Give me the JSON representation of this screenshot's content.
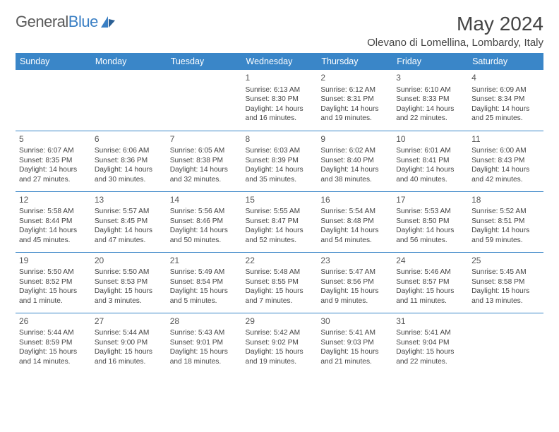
{
  "logo": {
    "text1": "General",
    "text2": "Blue"
  },
  "title": "May 2024",
  "location": "Olevano di Lomellina, Lombardy, Italy",
  "colors": {
    "header_bg": "#3a86c8",
    "header_fg": "#ffffff",
    "row_divider": "#3a86c8",
    "body_text": "#444444",
    "logo_gray": "#5a5a5a",
    "logo_blue": "#3a7fc4",
    "page_bg": "#ffffff"
  },
  "day_headers": [
    "Sunday",
    "Monday",
    "Tuesday",
    "Wednesday",
    "Thursday",
    "Friday",
    "Saturday"
  ],
  "weeks": [
    [
      {
        "n": "",
        "lines": []
      },
      {
        "n": "",
        "lines": []
      },
      {
        "n": "",
        "lines": []
      },
      {
        "n": "1",
        "lines": [
          "Sunrise: 6:13 AM",
          "Sunset: 8:30 PM",
          "Daylight: 14 hours",
          "and 16 minutes."
        ]
      },
      {
        "n": "2",
        "lines": [
          "Sunrise: 6:12 AM",
          "Sunset: 8:31 PM",
          "Daylight: 14 hours",
          "and 19 minutes."
        ]
      },
      {
        "n": "3",
        "lines": [
          "Sunrise: 6:10 AM",
          "Sunset: 8:33 PM",
          "Daylight: 14 hours",
          "and 22 minutes."
        ]
      },
      {
        "n": "4",
        "lines": [
          "Sunrise: 6:09 AM",
          "Sunset: 8:34 PM",
          "Daylight: 14 hours",
          "and 25 minutes."
        ]
      }
    ],
    [
      {
        "n": "5",
        "lines": [
          "Sunrise: 6:07 AM",
          "Sunset: 8:35 PM",
          "Daylight: 14 hours",
          "and 27 minutes."
        ]
      },
      {
        "n": "6",
        "lines": [
          "Sunrise: 6:06 AM",
          "Sunset: 8:36 PM",
          "Daylight: 14 hours",
          "and 30 minutes."
        ]
      },
      {
        "n": "7",
        "lines": [
          "Sunrise: 6:05 AM",
          "Sunset: 8:38 PM",
          "Daylight: 14 hours",
          "and 32 minutes."
        ]
      },
      {
        "n": "8",
        "lines": [
          "Sunrise: 6:03 AM",
          "Sunset: 8:39 PM",
          "Daylight: 14 hours",
          "and 35 minutes."
        ]
      },
      {
        "n": "9",
        "lines": [
          "Sunrise: 6:02 AM",
          "Sunset: 8:40 PM",
          "Daylight: 14 hours",
          "and 38 minutes."
        ]
      },
      {
        "n": "10",
        "lines": [
          "Sunrise: 6:01 AM",
          "Sunset: 8:41 PM",
          "Daylight: 14 hours",
          "and 40 minutes."
        ]
      },
      {
        "n": "11",
        "lines": [
          "Sunrise: 6:00 AM",
          "Sunset: 8:43 PM",
          "Daylight: 14 hours",
          "and 42 minutes."
        ]
      }
    ],
    [
      {
        "n": "12",
        "lines": [
          "Sunrise: 5:58 AM",
          "Sunset: 8:44 PM",
          "Daylight: 14 hours",
          "and 45 minutes."
        ]
      },
      {
        "n": "13",
        "lines": [
          "Sunrise: 5:57 AM",
          "Sunset: 8:45 PM",
          "Daylight: 14 hours",
          "and 47 minutes."
        ]
      },
      {
        "n": "14",
        "lines": [
          "Sunrise: 5:56 AM",
          "Sunset: 8:46 PM",
          "Daylight: 14 hours",
          "and 50 minutes."
        ]
      },
      {
        "n": "15",
        "lines": [
          "Sunrise: 5:55 AM",
          "Sunset: 8:47 PM",
          "Daylight: 14 hours",
          "and 52 minutes."
        ]
      },
      {
        "n": "16",
        "lines": [
          "Sunrise: 5:54 AM",
          "Sunset: 8:48 PM",
          "Daylight: 14 hours",
          "and 54 minutes."
        ]
      },
      {
        "n": "17",
        "lines": [
          "Sunrise: 5:53 AM",
          "Sunset: 8:50 PM",
          "Daylight: 14 hours",
          "and 56 minutes."
        ]
      },
      {
        "n": "18",
        "lines": [
          "Sunrise: 5:52 AM",
          "Sunset: 8:51 PM",
          "Daylight: 14 hours",
          "and 59 minutes."
        ]
      }
    ],
    [
      {
        "n": "19",
        "lines": [
          "Sunrise: 5:50 AM",
          "Sunset: 8:52 PM",
          "Daylight: 15 hours",
          "and 1 minute."
        ]
      },
      {
        "n": "20",
        "lines": [
          "Sunrise: 5:50 AM",
          "Sunset: 8:53 PM",
          "Daylight: 15 hours",
          "and 3 minutes."
        ]
      },
      {
        "n": "21",
        "lines": [
          "Sunrise: 5:49 AM",
          "Sunset: 8:54 PM",
          "Daylight: 15 hours",
          "and 5 minutes."
        ]
      },
      {
        "n": "22",
        "lines": [
          "Sunrise: 5:48 AM",
          "Sunset: 8:55 PM",
          "Daylight: 15 hours",
          "and 7 minutes."
        ]
      },
      {
        "n": "23",
        "lines": [
          "Sunrise: 5:47 AM",
          "Sunset: 8:56 PM",
          "Daylight: 15 hours",
          "and 9 minutes."
        ]
      },
      {
        "n": "24",
        "lines": [
          "Sunrise: 5:46 AM",
          "Sunset: 8:57 PM",
          "Daylight: 15 hours",
          "and 11 minutes."
        ]
      },
      {
        "n": "25",
        "lines": [
          "Sunrise: 5:45 AM",
          "Sunset: 8:58 PM",
          "Daylight: 15 hours",
          "and 13 minutes."
        ]
      }
    ],
    [
      {
        "n": "26",
        "lines": [
          "Sunrise: 5:44 AM",
          "Sunset: 8:59 PM",
          "Daylight: 15 hours",
          "and 14 minutes."
        ]
      },
      {
        "n": "27",
        "lines": [
          "Sunrise: 5:44 AM",
          "Sunset: 9:00 PM",
          "Daylight: 15 hours",
          "and 16 minutes."
        ]
      },
      {
        "n": "28",
        "lines": [
          "Sunrise: 5:43 AM",
          "Sunset: 9:01 PM",
          "Daylight: 15 hours",
          "and 18 minutes."
        ]
      },
      {
        "n": "29",
        "lines": [
          "Sunrise: 5:42 AM",
          "Sunset: 9:02 PM",
          "Daylight: 15 hours",
          "and 19 minutes."
        ]
      },
      {
        "n": "30",
        "lines": [
          "Sunrise: 5:41 AM",
          "Sunset: 9:03 PM",
          "Daylight: 15 hours",
          "and 21 minutes."
        ]
      },
      {
        "n": "31",
        "lines": [
          "Sunrise: 5:41 AM",
          "Sunset: 9:04 PM",
          "Daylight: 15 hours",
          "and 22 minutes."
        ]
      },
      {
        "n": "",
        "lines": []
      }
    ]
  ]
}
